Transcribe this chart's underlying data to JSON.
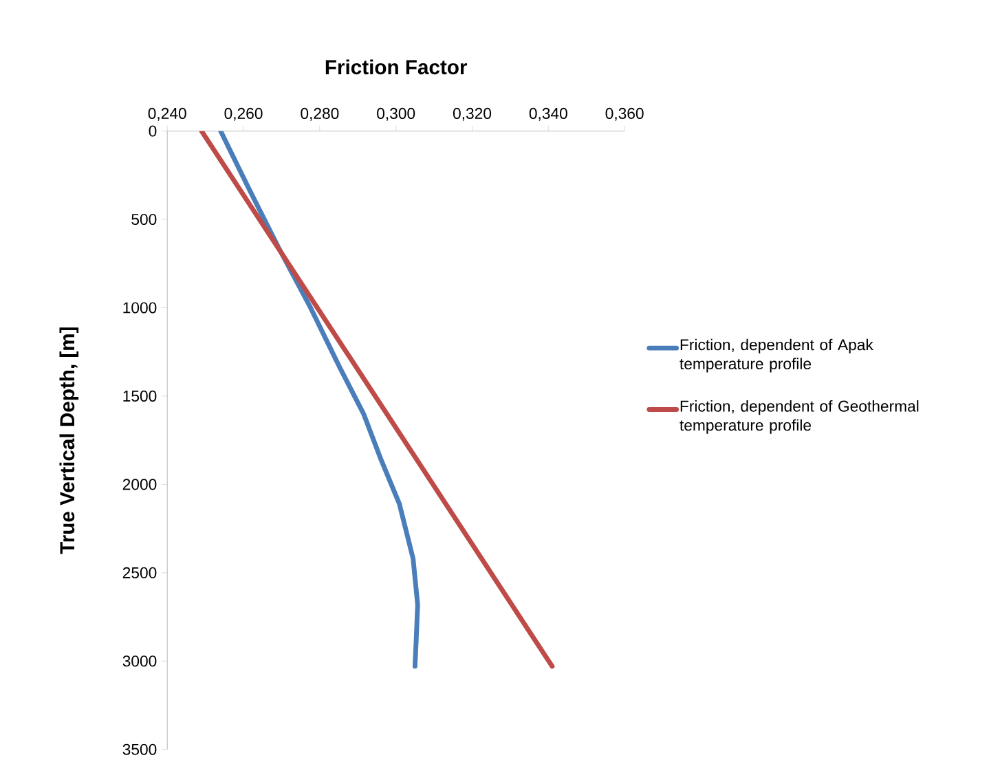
{
  "chart_data": {
    "type": "line",
    "title": "Friction Factor",
    "ylabel": "True Vertical Depth, [m]",
    "xlim": [
      0.24,
      0.36
    ],
    "xticks": [
      {
        "value": 0.24,
        "label": "0,240"
      },
      {
        "value": 0.26,
        "label": "0,260"
      },
      {
        "value": 0.28,
        "label": "0,280"
      },
      {
        "value": 0.3,
        "label": "0,300"
      },
      {
        "value": 0.32,
        "label": "0,320"
      },
      {
        "value": 0.34,
        "label": "0,340"
      },
      {
        "value": 0.36,
        "label": "0,360"
      }
    ],
    "ylim": [
      3500,
      0
    ],
    "yticks": [
      0,
      500,
      1000,
      1500,
      2000,
      2500,
      3000,
      3500
    ],
    "grid": false,
    "legend": "right",
    "marker": "none",
    "line_style": "solid",
    "series": [
      {
        "name": "Friction, dependent of Apak temperature profile",
        "color": "#4a7ebb",
        "x": [
          0.254,
          0.2615,
          0.2692,
          0.2776,
          0.2853,
          0.2915,
          0.2961,
          0.3009,
          0.3045,
          0.3057,
          0.3053,
          0.305
        ],
        "values": [
          0,
          330,
          660,
          1000,
          1340,
          1600,
          1860,
          2110,
          2420,
          2680,
          2890,
          3030
        ]
      },
      {
        "name": "Friction, dependent of Geothermal temperature profile",
        "color": "#be4b48",
        "x": [
          0.249,
          0.341
        ],
        "values": [
          0,
          3030
        ]
      }
    ]
  }
}
